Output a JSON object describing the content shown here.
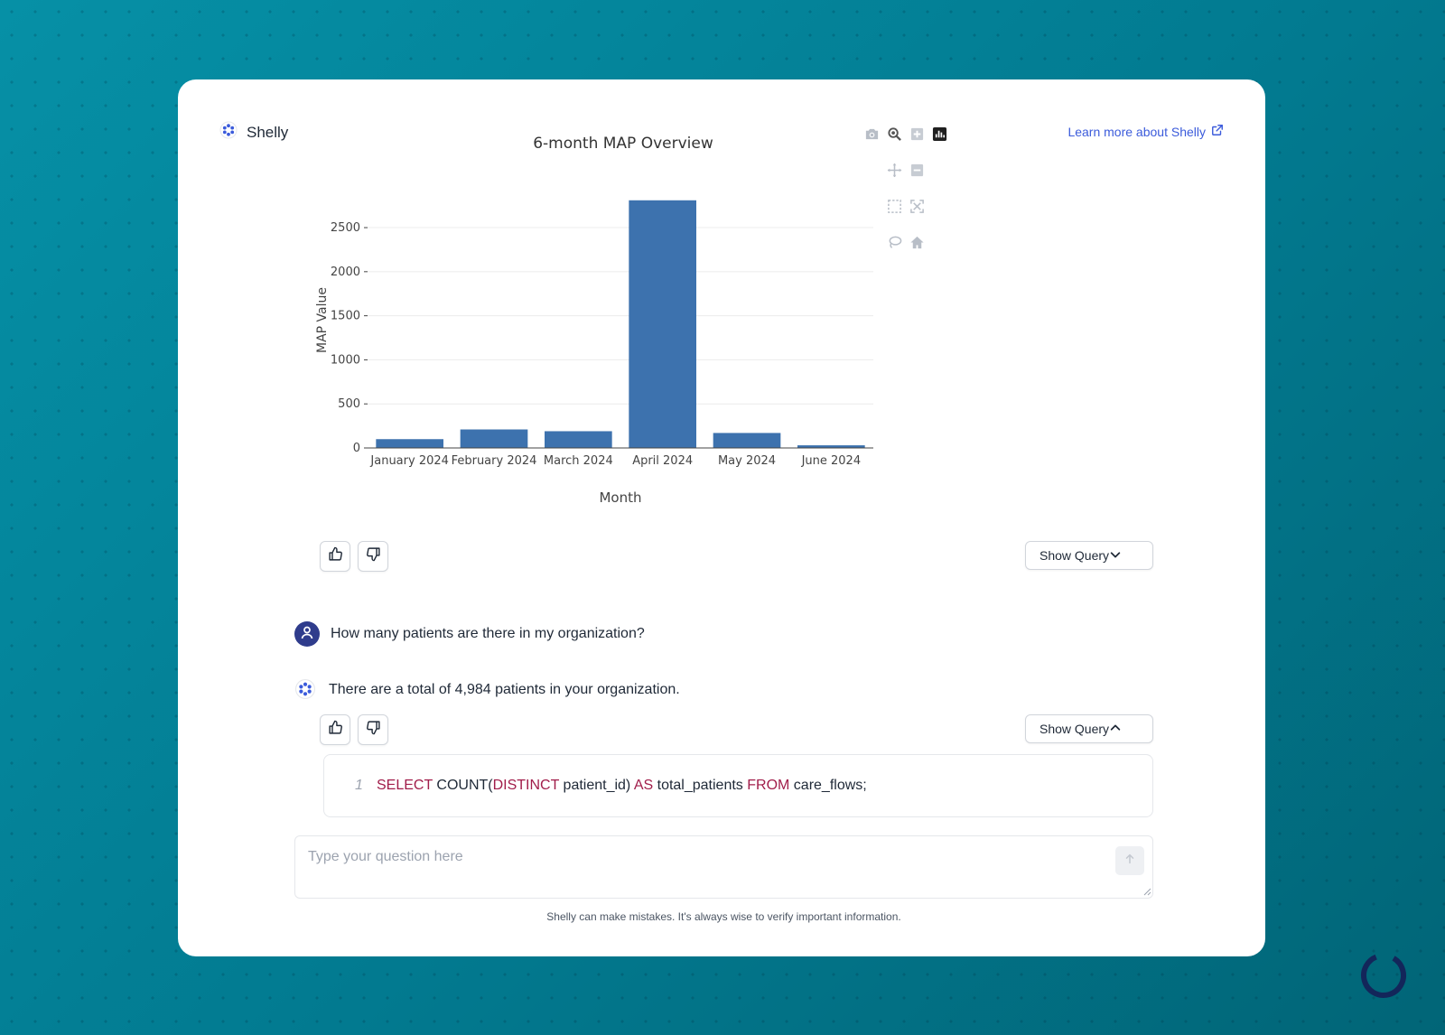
{
  "app": {
    "name": "Shelly",
    "learn_more": "Learn more about Shelly",
    "disclaimer": "Shelly can make mistakes. It's always wise to verify important information."
  },
  "colors": {
    "bar": "#3d72ae",
    "accent": "#3b5bdb",
    "sql_keyword": "#a11d4a",
    "background": "#027d93"
  },
  "chart_data": {
    "type": "bar",
    "title": "6-month MAP Overview",
    "xlabel": "Month",
    "ylabel": "MAP Value",
    "categories": [
      "January 2024",
      "February 2024",
      "March 2024",
      "April 2024",
      "May 2024",
      "June 2024"
    ],
    "values": [
      100,
      210,
      190,
      2810,
      170,
      30
    ],
    "ylim": [
      0,
      2900
    ],
    "yticks": [
      0,
      500,
      1000,
      1500,
      2000,
      2500
    ],
    "grid": true
  },
  "modebar": [
    "camera-icon",
    "zoom-icon",
    "zoom-in-icon",
    "plotly-logo-icon",
    "pan-icon",
    "zoom-out-icon",
    "box-select-icon",
    "autoscale-icon",
    "lasso-icon",
    "reset-axes-icon"
  ],
  "conversation": {
    "show_query_label": "Show Query",
    "user_question": "How many patients are there in my organization?",
    "bot_answer": "There are a total of 4,984 patients in your organization.",
    "sql": {
      "line_number": "1",
      "kw_select": "SELECT",
      "t_count": " COUNT(",
      "kw_distinct": "DISTINCT",
      "t_pid": " patient_id) ",
      "kw_as": "AS",
      "t_alias": " total_patients ",
      "kw_from": "FROM",
      "t_table": " care_flows;"
    }
  },
  "input": {
    "placeholder": "Type your question here"
  }
}
